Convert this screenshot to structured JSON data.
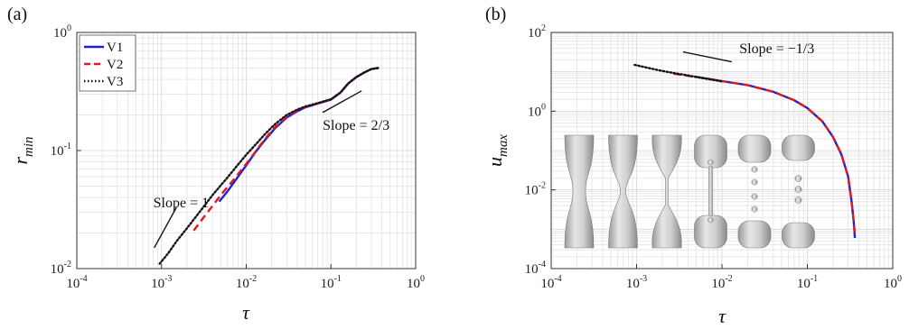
{
  "figure": {
    "colors": {
      "V1": "#1f1fe0",
      "V2": "#e01a1a",
      "V3": "#111111",
      "grid": "#e3e3e3",
      "axis": "#333333"
    }
  },
  "chart_data": [
    {
      "type": "line",
      "panel_label": "(a)",
      "xlabel": "τ",
      "ylabel": "r_min",
      "xscale": "log",
      "yscale": "log",
      "xlim": [
        0.0001,
        1
      ],
      "ylim": [
        0.01,
        1
      ],
      "x_ticks": [
        {
          "base": "10",
          "exp": "-4",
          "value": 0.0001
        },
        {
          "base": "10",
          "exp": "-3",
          "value": 0.001
        },
        {
          "base": "10",
          "exp": "-2",
          "value": 0.01
        },
        {
          "base": "10",
          "exp": "-1",
          "value": 0.1
        },
        {
          "base": "10",
          "exp": "0",
          "value": 1
        }
      ],
      "y_ticks": [
        {
          "base": "10",
          "exp": "-2",
          "value": 0.01
        },
        {
          "base": "10",
          "exp": "-1",
          "value": 0.1
        },
        {
          "base": "10",
          "exp": "0",
          "value": 1
        }
      ],
      "grid": true,
      "legend": {
        "placement": "top-left",
        "entries": [
          "V1",
          "V2",
          "V3"
        ]
      },
      "series": [
        {
          "name": "V1",
          "style": "solid",
          "x": [
            0.0048,
            0.006,
            0.008,
            0.01,
            0.013,
            0.017,
            0.022,
            0.03,
            0.04,
            0.05,
            0.07,
            0.1,
            0.13,
            0.16,
            0.2,
            0.25,
            0.3,
            0.36
          ],
          "y": [
            0.037,
            0.045,
            0.06,
            0.075,
            0.098,
            0.125,
            0.155,
            0.19,
            0.215,
            0.232,
            0.25,
            0.27,
            0.31,
            0.37,
            0.42,
            0.46,
            0.49,
            0.5
          ]
        },
        {
          "name": "V2",
          "style": "dashed",
          "x": [
            0.0024,
            0.003,
            0.004,
            0.005,
            0.007,
            0.01,
            0.013,
            0.017,
            0.022,
            0.03,
            0.04,
            0.05,
            0.07,
            0.1,
            0.13,
            0.16,
            0.2,
            0.25,
            0.3,
            0.36
          ],
          "y": [
            0.021,
            0.026,
            0.034,
            0.042,
            0.056,
            0.077,
            0.099,
            0.128,
            0.158,
            0.193,
            0.218,
            0.234,
            0.251,
            0.271,
            0.31,
            0.37,
            0.42,
            0.46,
            0.49,
            0.5
          ]
        },
        {
          "name": "V3",
          "style": "dotted",
          "x": [
            0.00095,
            0.0012,
            0.0015,
            0.002,
            0.003,
            0.004,
            0.006,
            0.008,
            0.01,
            0.013,
            0.017,
            0.022,
            0.03,
            0.04,
            0.05,
            0.07,
            0.1,
            0.13,
            0.16,
            0.2,
            0.25,
            0.3,
            0.36
          ],
          "y": [
            0.011,
            0.0135,
            0.017,
            0.022,
            0.032,
            0.042,
            0.059,
            0.076,
            0.092,
            0.113,
            0.14,
            0.168,
            0.2,
            0.222,
            0.236,
            0.252,
            0.272,
            0.31,
            0.37,
            0.42,
            0.46,
            0.49,
            0.5
          ]
        }
      ],
      "annotations": [
        {
          "text": "Slope = 1",
          "x": 0.0008,
          "y": 0.033
        },
        {
          "text": "Slope = 2/3",
          "x": 0.08,
          "y": 0.15
        }
      ],
      "slope_lines": [
        {
          "x": [
            0.00082,
            0.0015
          ],
          "y": [
            0.015,
            0.033
          ]
        },
        {
          "x": [
            0.08,
            0.23
          ],
          "y": [
            0.21,
            0.32
          ]
        }
      ]
    },
    {
      "type": "line",
      "panel_label": "(b)",
      "xlabel": "τ",
      "ylabel": "u_max",
      "xscale": "log",
      "yscale": "log",
      "xlim": [
        0.0001,
        1
      ],
      "ylim": [
        0.0001,
        100
      ],
      "x_ticks": [
        {
          "base": "10",
          "exp": "-4",
          "value": 0.0001
        },
        {
          "base": "10",
          "exp": "-3",
          "value": 0.001
        },
        {
          "base": "10",
          "exp": "-2",
          "value": 0.01
        },
        {
          "base": "10",
          "exp": "-1",
          "value": 0.1
        },
        {
          "base": "10",
          "exp": "0",
          "value": 1
        }
      ],
      "y_ticks": [
        {
          "base": "10",
          "exp": "-4",
          "value": 0.0001
        },
        {
          "base": "10",
          "exp": "-2",
          "value": 0.01
        },
        {
          "base": "10",
          "exp": "0",
          "value": 1
        },
        {
          "base": "10",
          "exp": "2",
          "value": 100
        }
      ],
      "grid": true,
      "series": [
        {
          "name": "V1",
          "style": "solid",
          "x": [
            0.0048,
            0.007,
            0.01,
            0.02,
            0.04,
            0.07,
            0.1,
            0.15,
            0.2,
            0.25,
            0.3,
            0.33,
            0.35,
            0.36
          ],
          "y": [
            7.5,
            6.6,
            5.8,
            4.6,
            3.1,
            1.9,
            1.2,
            0.55,
            0.22,
            0.08,
            0.022,
            0.005,
            0.0015,
            0.0006
          ]
        },
        {
          "name": "V2",
          "style": "dashed",
          "x": [
            0.0027,
            0.004,
            0.007,
            0.01,
            0.02,
            0.04,
            0.07,
            0.1,
            0.15,
            0.2,
            0.25,
            0.3,
            0.33,
            0.35,
            0.36
          ],
          "y": [
            9.0,
            7.9,
            6.6,
            5.8,
            4.6,
            3.1,
            1.9,
            1.2,
            0.55,
            0.22,
            0.08,
            0.022,
            0.005,
            0.0015,
            0.0007
          ]
        },
        {
          "name": "V3",
          "style": "dotted",
          "x": [
            0.00095,
            0.0015,
            0.002,
            0.003,
            0.004,
            0.006,
            0.01
          ],
          "y": [
            15.0,
            12.0,
            10.5,
            9.0,
            8.1,
            6.9,
            5.7
          ]
        }
      ],
      "annotations": [
        {
          "text": "Slope = −1/3",
          "x": 0.016,
          "y": 30
        }
      ],
      "slope_lines": [
        {
          "x": [
            0.0035,
            0.013
          ],
          "y": [
            32,
            18
          ]
        }
      ],
      "inset": {
        "frames": 6
      }
    }
  ]
}
